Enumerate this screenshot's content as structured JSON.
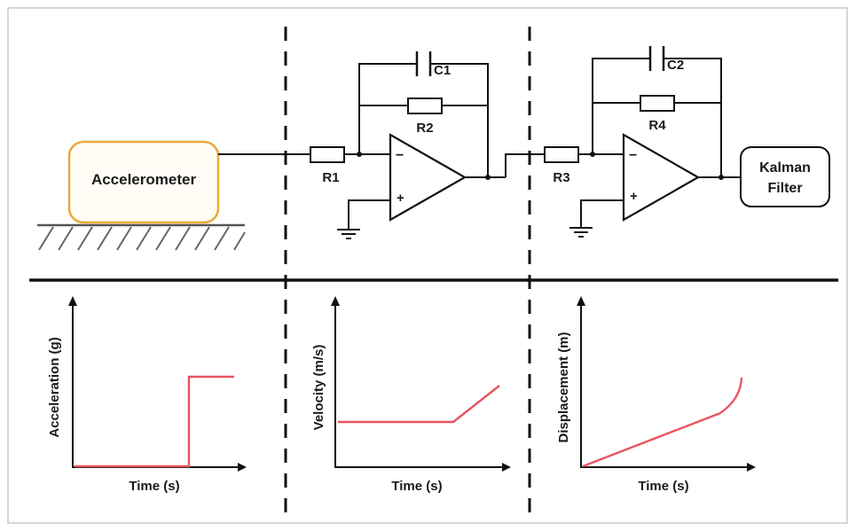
{
  "blocks": {
    "sensor": "Accelerometer",
    "filter_line1": "Kalman",
    "filter_line2": "Filter"
  },
  "components": {
    "r1": "R1",
    "r2": "R2",
    "r3": "R3",
    "r4": "R4",
    "c1": "C1",
    "c2": "C2",
    "minus": "−",
    "plus": "+"
  },
  "plots": {
    "acceleration": {
      "ylabel": "Acceleration (g)",
      "xlabel": "Time (s)"
    },
    "velocity": {
      "ylabel": "Velocity (m/s)",
      "xlabel": "Time (s)"
    },
    "displacement": {
      "ylabel": "Displacement (m)",
      "xlabel": "Time (s)"
    }
  },
  "colors": {
    "signal": "#e8555f",
    "accelerometer_border": "#e8a93a",
    "accelerometer_fill": "#fffdf6"
  }
}
